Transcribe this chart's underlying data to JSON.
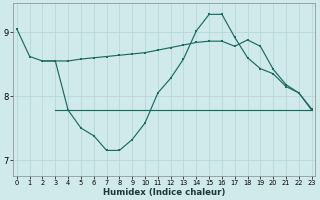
{
  "xlabel": "Humidex (Indice chaleur)",
  "background_color": "#d0eaec",
  "grid_color": "#b8d8da",
  "line_color": "#1a6b60",
  "xlim": [
    0,
    23
  ],
  "ylim": [
    6.75,
    9.45
  ],
  "yticks": [
    7,
    8,
    9
  ],
  "xticks": [
    0,
    1,
    2,
    3,
    4,
    5,
    6,
    7,
    8,
    9,
    10,
    11,
    12,
    13,
    14,
    15,
    16,
    17,
    18,
    19,
    20,
    21,
    22,
    23
  ],
  "curve1_x": [
    0,
    1,
    2,
    3,
    4,
    5,
    6,
    7,
    8,
    9,
    10,
    11,
    12,
    13,
    14,
    15,
    16,
    17,
    18,
    19,
    20,
    21,
    22,
    23
  ],
  "curve1_y": [
    9.05,
    8.62,
    8.55,
    8.55,
    7.78,
    7.5,
    7.38,
    7.15,
    7.15,
    7.32,
    7.58,
    8.05,
    8.28,
    8.58,
    9.02,
    9.28,
    9.28,
    8.92,
    8.6,
    8.43,
    8.35,
    8.15,
    8.05,
    7.8
  ],
  "curve2_x": [
    2,
    3,
    4,
    5,
    6,
    7,
    8,
    9,
    10,
    11,
    12,
    13,
    14,
    15,
    16,
    17,
    18,
    19,
    20,
    21,
    22,
    23
  ],
  "curve2_y": [
    8.55,
    8.55,
    8.55,
    8.58,
    8.6,
    8.62,
    8.64,
    8.66,
    8.68,
    8.72,
    8.76,
    8.8,
    8.84,
    8.86,
    8.86,
    8.78,
    8.88,
    8.78,
    8.42,
    8.18,
    8.05,
    7.78
  ],
  "curve3_x": [
    3,
    4,
    5,
    6,
    7,
    8,
    9,
    10,
    11,
    12,
    13,
    14,
    15,
    16,
    17,
    18,
    19,
    20,
    21,
    22,
    23
  ],
  "curve3_y": [
    7.78,
    7.78,
    7.78,
    7.78,
    7.78,
    7.78,
    7.78,
    7.78,
    7.78,
    7.78,
    7.78,
    7.78,
    7.78,
    7.78,
    7.78,
    7.78,
    7.78,
    7.78,
    7.78,
    7.78,
    7.78
  ]
}
